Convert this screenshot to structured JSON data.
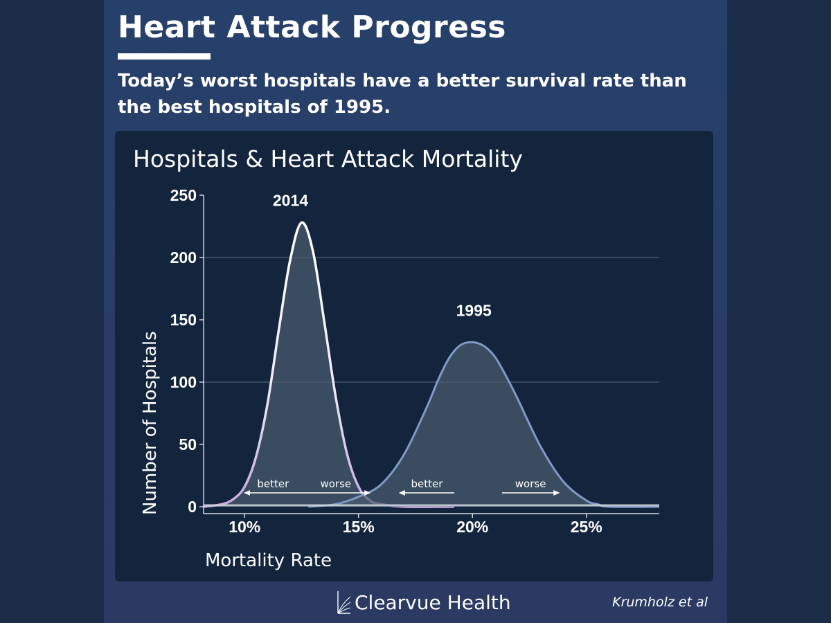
{
  "header": {
    "title": "Heart Attack Progress",
    "subtitle": "Today’s worst hospitals have a better survival rate than the best hospitals of 1995."
  },
  "chart_data": {
    "type": "area",
    "title": "Hospitals & Heart Attack Mortality",
    "xlabel": "Mortality Rate",
    "ylabel": "Number of Hospitals",
    "xlim": [
      8.2,
      28.2
    ],
    "ylim": [
      0,
      250
    ],
    "x_ticks": [
      10,
      15,
      20,
      25
    ],
    "x_tick_labels": [
      "10%",
      "15%",
      "20%",
      "25%"
    ],
    "y_ticks": [
      0,
      50,
      100,
      150,
      200,
      250
    ],
    "y_tick_labels": [
      "0",
      "50",
      "100",
      "150",
      "200",
      "250"
    ],
    "grid": "horizontal at 100 and 200",
    "series": [
      {
        "name": "2014",
        "peak_x": 12.5,
        "peak_y": 228,
        "x": [
          8.2,
          9.0,
          9.5,
          10.0,
          10.5,
          11.0,
          11.5,
          12.0,
          12.5,
          13.0,
          13.5,
          14.0,
          14.5,
          15.0,
          15.5,
          16.0,
          17.0,
          19.2
        ],
        "y": [
          0,
          2,
          6,
          16,
          40,
          82,
          142,
          198,
          228,
          205,
          148,
          88,
          42,
          16,
          5,
          2,
          0,
          0
        ],
        "stroke_top": "#ffffff",
        "stroke_bottom": "#c7a8e0",
        "arrows": [
          {
            "label": "better",
            "direction": "left",
            "x_from": 12.5,
            "x_to": 10.0
          },
          {
            "label": "worse",
            "direction": "right",
            "x_from": 12.5,
            "x_to": 15.5
          }
        ]
      },
      {
        "name": "1995",
        "peak_x": 20.0,
        "peak_y": 132,
        "x": [
          12.8,
          14.0,
          15.0,
          16.0,
          17.0,
          18.0,
          18.5,
          19.0,
          19.5,
          20.0,
          20.5,
          21.0,
          21.5,
          22.0,
          23.0,
          24.0,
          25.0,
          25.5,
          26.0,
          28.2
        ],
        "y": [
          0,
          2,
          8,
          18,
          42,
          80,
          102,
          120,
          130,
          132,
          129,
          120,
          104,
          86,
          48,
          20,
          5,
          2,
          0,
          0
        ],
        "stroke": "#7f9ac4",
        "arrows": [
          {
            "label": "better",
            "direction": "left",
            "x_from": 19.2,
            "x_to": 16.8
          },
          {
            "label": "worse",
            "direction": "right",
            "x_from": 21.3,
            "x_to": 23.8
          }
        ]
      }
    ]
  },
  "footer": {
    "brand": "Clearvue Health",
    "credit": "Krumholz et al"
  },
  "colors": {
    "background": "#1c2d48",
    "slide": "#2a3d66",
    "panel": "#13243d",
    "area_fill": "#4a5b6e",
    "text": "#ffffff"
  }
}
